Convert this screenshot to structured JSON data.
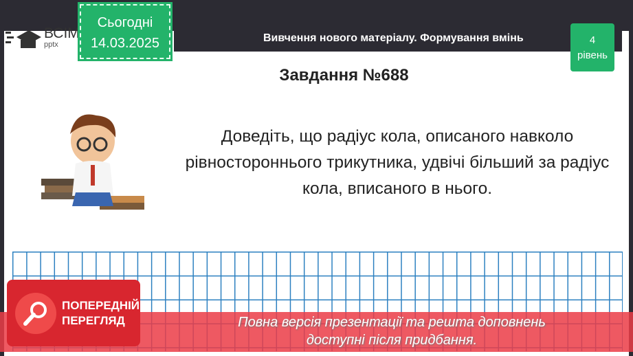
{
  "logo": {
    "name": "ВСІМ",
    "sub": "pptx"
  },
  "date": {
    "label": "Сьогодні",
    "value": "14.03.2025"
  },
  "header": {
    "title": "Вивчення нового матеріалу.  Формування вмінь"
  },
  "level": {
    "number": "4",
    "label": "рівень"
  },
  "task": {
    "title": "Завдання №688",
    "text": "Доведіть, що радіус кола, описаного навколо рівностороннього трикутника, удвічі більший за радіус кола, вписаного в нього."
  },
  "preview": {
    "label_line1": "ПОПЕРЕДНІЙ",
    "label_line2": "ПЕРЕГЛЯД"
  },
  "notice": {
    "line1": "Повна версія презентації та решта доповнень",
    "line2": "доступні після придбання."
  },
  "colors": {
    "green": "#23b36a",
    "dark": "#2c2b33",
    "red": "#d8262f",
    "grid": "#2a7fc0"
  }
}
